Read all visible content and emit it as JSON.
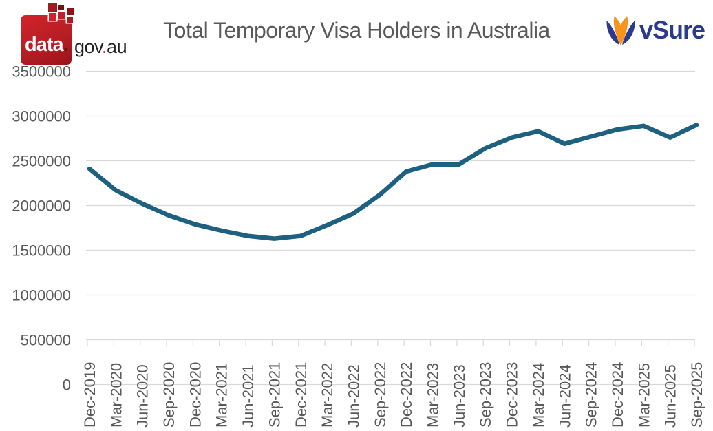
{
  "header": {
    "title": "Total Temporary Visa Holders in Australia",
    "datagov_logo": {
      "data": "data",
      "dot1": ".",
      "gov": "gov",
      "dot2": ".",
      "au": "au"
    },
    "vsure_logo": {
      "text": "vSure"
    }
  },
  "colors": {
    "line": "#1d607f",
    "grid": "#d9d9d9",
    "axis_text": "#595959",
    "title_text": "#595959",
    "datagov_red": "#c1272d",
    "vsure_navy": "#2b3a8f",
    "vsure_orange": "#f7941e"
  },
  "chart_data": {
    "type": "line",
    "title": "Total Temporary Visa Holders in Australia",
    "x": [
      "Dec-2019",
      "Mar-2020",
      "Jun-2020",
      "Sep-2020",
      "Dec-2020",
      "Mar-2021",
      "Jun-2021",
      "Sep-2021",
      "Dec-2021",
      "Mar-2022",
      "Jun-2022",
      "Sep-2022",
      "Dec-2022",
      "Mar-2023",
      "Jun-2023",
      "Sep-2023",
      "Dec-2023",
      "Mar-2024",
      "Jun-2024",
      "Sep-2024",
      "Dec-2024",
      "Mar-2025",
      "Jun-2025",
      "Sep-2025"
    ],
    "values": [
      2410000,
      2170000,
      2020000,
      1890000,
      1790000,
      1720000,
      1660000,
      1630000,
      1660000,
      1780000,
      1910000,
      2120000,
      2380000,
      2460000,
      2460000,
      2640000,
      2760000,
      2830000,
      2690000,
      2770000,
      2850000,
      2890000,
      2760000,
      2900000
    ],
    "ylim": [
      0,
      3500000
    ],
    "ytick_step": 500000,
    "ytick_labels": [
      "0",
      "500000",
      "1000000",
      "1500000",
      "2000000",
      "2500000",
      "3000000",
      "3500000"
    ],
    "grid": true,
    "legend": "none",
    "xlabel": "",
    "ylabel": ""
  },
  "logo_mosaic": [
    {
      "l": 44,
      "t": 0,
      "w": 13,
      "h": 13,
      "bg": "#a11a20"
    },
    {
      "l": 59,
      "t": 3,
      "w": 8,
      "h": 8,
      "bg": "#7a1013"
    },
    {
      "l": 59,
      "t": 13,
      "w": 10,
      "h": 10,
      "bg": "#c12127"
    },
    {
      "l": 71,
      "t": 7,
      "w": 11,
      "h": 11,
      "bg": "#8e1318"
    },
    {
      "l": 45,
      "t": 15,
      "w": 11,
      "h": 11,
      "bg": "#d0242b"
    },
    {
      "l": 71,
      "t": 20,
      "w": 9,
      "h": 9,
      "bg": "#b01c22"
    }
  ]
}
